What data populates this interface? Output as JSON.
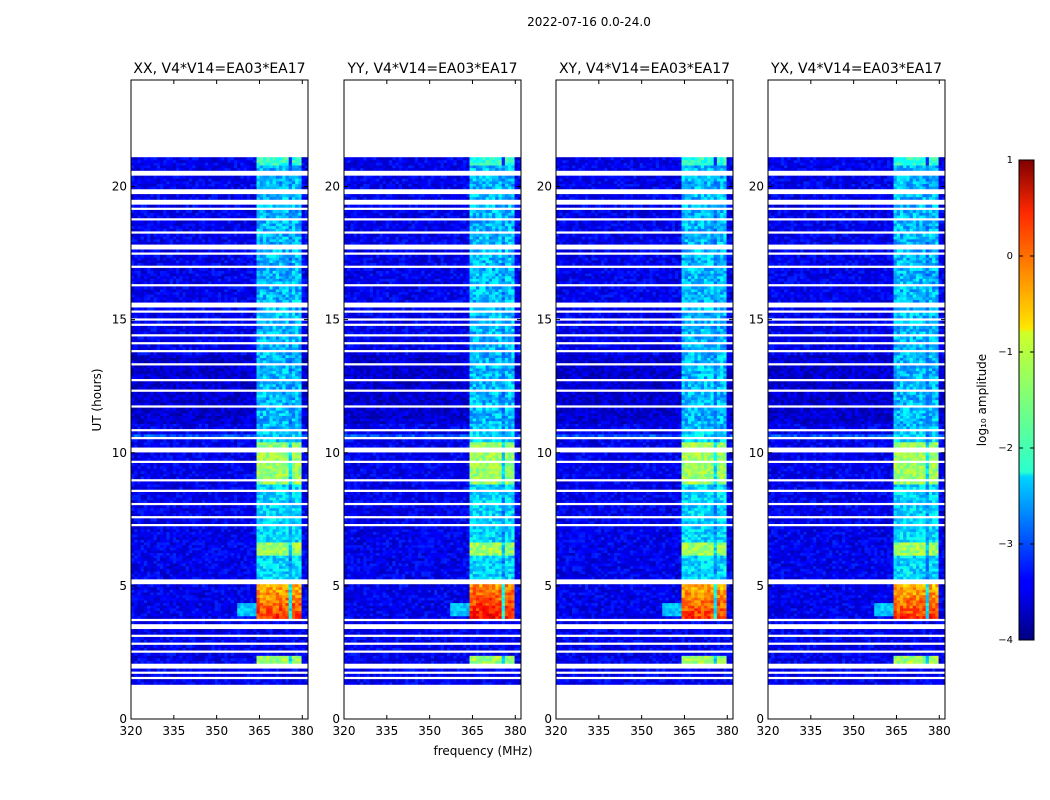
{
  "chart_data": {
    "type": "heatmap",
    "suptitle": "2022-07-16 0.0-24.0",
    "xlabel": "frequency (MHz)",
    "ylabel": "UT (hours)",
    "xlim": [
      320,
      382
    ],
    "ylim": [
      0,
      24
    ],
    "xticks": [
      320,
      335,
      350,
      365,
      380
    ],
    "yticks": [
      0,
      5,
      10,
      15,
      20
    ],
    "panels": [
      {
        "title": "XX, V4*V14=EA03*EA17",
        "amp_scale": 1.0
      },
      {
        "title": "YY, V4*V14=EA03*EA17",
        "amp_scale": 1.05
      },
      {
        "title": "XY, V4*V14=EA03*EA17",
        "amp_scale": 1.0
      },
      {
        "title": "YX, V4*V14=EA03*EA17",
        "amp_scale": 1.0
      }
    ],
    "colorbar": {
      "label": "log₁₀ amplitude",
      "range": [
        -4,
        1
      ],
      "ticks": [
        "1",
        "0",
        "−1",
        "−2",
        "−3",
        "−4"
      ],
      "colormap": "jet"
    },
    "data_coverage_hours": [
      1.3,
      21.1
    ],
    "rfi_band_mhz": [
      364,
      380
    ],
    "rfi_channels_mhz": [
      [
        364,
        367
      ],
      [
        367.6,
        371.5
      ],
      [
        372.2,
        375.4
      ],
      [
        376.1,
        379.3
      ]
    ],
    "strong_rfi_hours": [
      3.8,
      5.3
    ],
    "moderate_rfi_hours": [
      [
        6.2,
        6.6
      ],
      [
        8.8,
        10.4
      ],
      [
        2.1,
        2.4
      ]
    ],
    "flagged_hours": [
      1.55,
      1.75,
      1.95,
      2.05,
      2.5,
      2.85,
      3.1,
      3.4,
      3.55,
      3.7,
      5.1,
      5.2,
      5.95,
      6.55,
      7.25,
      7.6,
      8.1,
      8.55,
      8.95,
      9.65,
      10.05,
      10.15,
      10.55,
      10.85,
      11.3,
      11.7,
      12.3,
      12.7,
      13.3,
      13.85,
      14.1,
      14.45,
      14.8,
      15.05,
      15.35,
      15.55,
      15.6,
      16.05,
      16.3,
      16.95,
      17.45,
      17.7,
      17.8,
      18.3,
      18.75,
      19.15,
      19.35,
      19.5,
      19.75,
      19.85,
      20.45,
      20.6,
      20.8
    ]
  }
}
